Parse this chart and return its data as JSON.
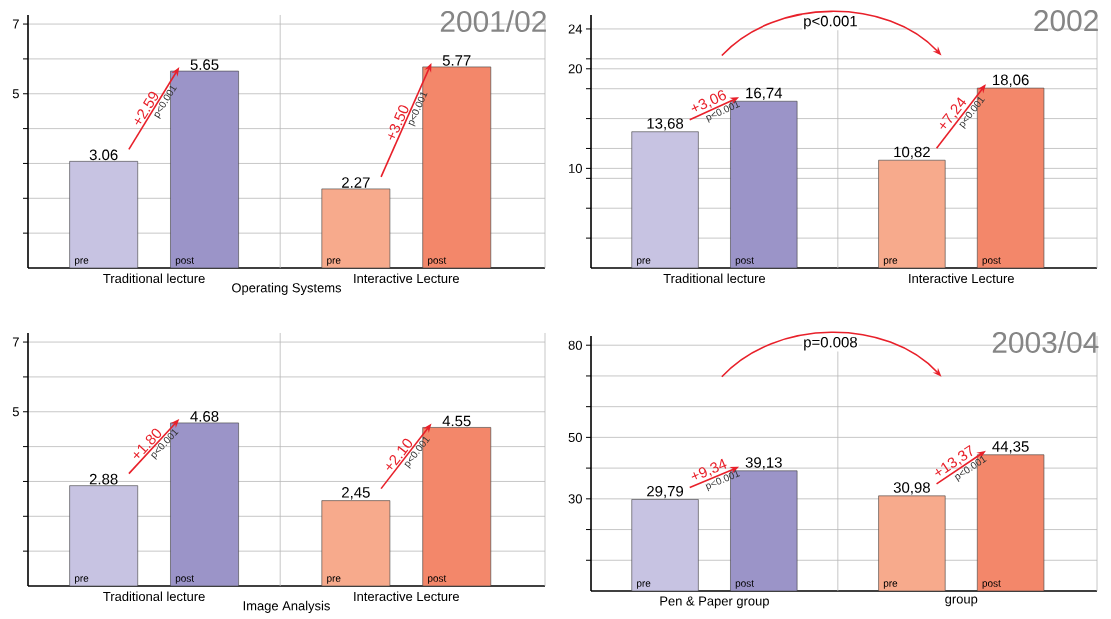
{
  "chart_data": [
    {
      "type": "bar",
      "title": "2001/02",
      "xlabel": "Operating Systems",
      "categories": [
        "Traditional lecture",
        "Interactive Lecture"
      ],
      "series": [
        {
          "name": "pre",
          "colors": [
            "#c7c3e2",
            "#f7aa8c"
          ],
          "values": [
            3.06,
            2.27
          ],
          "value_labels": [
            "3.06",
            "2.27"
          ]
        },
        {
          "name": "post",
          "colors": [
            "#9b94c8",
            "#f3876a"
          ],
          "values": [
            5.65,
            5.77
          ],
          "value_labels": [
            "5.65",
            "5.77"
          ]
        }
      ],
      "ylim": [
        0,
        7.26
      ],
      "yticks": [
        {
          "value": 1,
          "label": null
        },
        {
          "value": 2,
          "label": null
        },
        {
          "value": 3,
          "label": null
        },
        {
          "value": 4,
          "label": null
        },
        5,
        {
          "value": 6,
          "label": null
        },
        7
      ],
      "grid": true,
      "annotations": [
        "+2.59",
        "p<0.001",
        "+3.50",
        "p<0.001"
      ]
    },
    {
      "type": "bar",
      "title": "2002",
      "categories": [
        "Traditional lecture",
        "Interactive Lecture"
      ],
      "series": [
        {
          "name": "pre",
          "colors": [
            "#c7c3e2",
            "#f7aa8c"
          ],
          "values": [
            13.68,
            10.82
          ],
          "value_labels": [
            "13,68",
            "10,82"
          ]
        },
        {
          "name": "post",
          "colors": [
            "#9b94c8",
            "#f3876a"
          ],
          "values": [
            16.74,
            18.06
          ],
          "value_labels": [
            "16,74",
            "18,06"
          ]
        }
      ],
      "ylim": [
        0,
        25.4
      ],
      "yticks": [
        {
          "value": 3,
          "label": null
        },
        {
          "value": 6,
          "label": null
        },
        {
          "value": 9,
          "label": null
        },
        10,
        {
          "value": 12,
          "label": null
        },
        {
          "value": 15,
          "label": null
        },
        {
          "value": 18,
          "label": null
        },
        20,
        {
          "value": 21,
          "label": null
        },
        24
      ],
      "grid": true,
      "annotations": [
        "+3,06",
        "p<0.001",
        "+7,24",
        "p<0.001",
        "p<0.001"
      ]
    },
    {
      "type": "bar",
      "xlabel": "Image Analysis",
      "categories": [
        "Traditional lecture",
        "Interactive Lecture"
      ],
      "series": [
        {
          "name": "pre",
          "colors": [
            "#c7c3e2",
            "#f7aa8c"
          ],
          "values": [
            2.88,
            2.45
          ],
          "value_labels": [
            "2.88",
            "2,45"
          ]
        },
        {
          "name": "post",
          "colors": [
            "#9b94c8",
            "#f3876a"
          ],
          "values": [
            4.68,
            4.55
          ],
          "value_labels": [
            "4.68",
            "4.55"
          ]
        }
      ],
      "ylim": [
        0,
        7.26
      ],
      "yticks": [
        {
          "value": 1,
          "label": null
        },
        {
          "value": 2,
          "label": null
        },
        {
          "value": 3,
          "label": null
        },
        {
          "value": 4,
          "label": null
        },
        5,
        {
          "value": 6,
          "label": null
        },
        7
      ],
      "grid": true,
      "annotations": [
        "+1.80",
        "p<0.001",
        "+2.10",
        "p<0.001"
      ]
    },
    {
      "type": "bar",
      "title": "2003/04",
      "categories": [
        "Pen & Paper group",
        "group"
      ],
      "series": [
        {
          "name": "pre",
          "colors": [
            "#c7c3e2",
            "#f7aa8c"
          ],
          "values": [
            29.79,
            30.98
          ],
          "value_labels": [
            "29,79",
            "30,98"
          ]
        },
        {
          "name": "post",
          "colors": [
            "#9b94c8",
            "#f3876a"
          ],
          "values": [
            39.13,
            44.35
          ],
          "value_labels": [
            "39,13",
            "44,35"
          ]
        }
      ],
      "ylim": [
        0,
        83
      ],
      "yticks": [
        {
          "value": 10,
          "label": null
        },
        {
          "value": 20,
          "label": null
        },
        30,
        {
          "value": 40,
          "label": null
        },
        50,
        {
          "value": 60,
          "label": null
        },
        {
          "value": 70,
          "label": null
        },
        80
      ],
      "grid": true,
      "annotations": [
        "+9,34",
        "p<0.001",
        "+13,37",
        "p<0.001",
        "p=0.008"
      ]
    }
  ]
}
